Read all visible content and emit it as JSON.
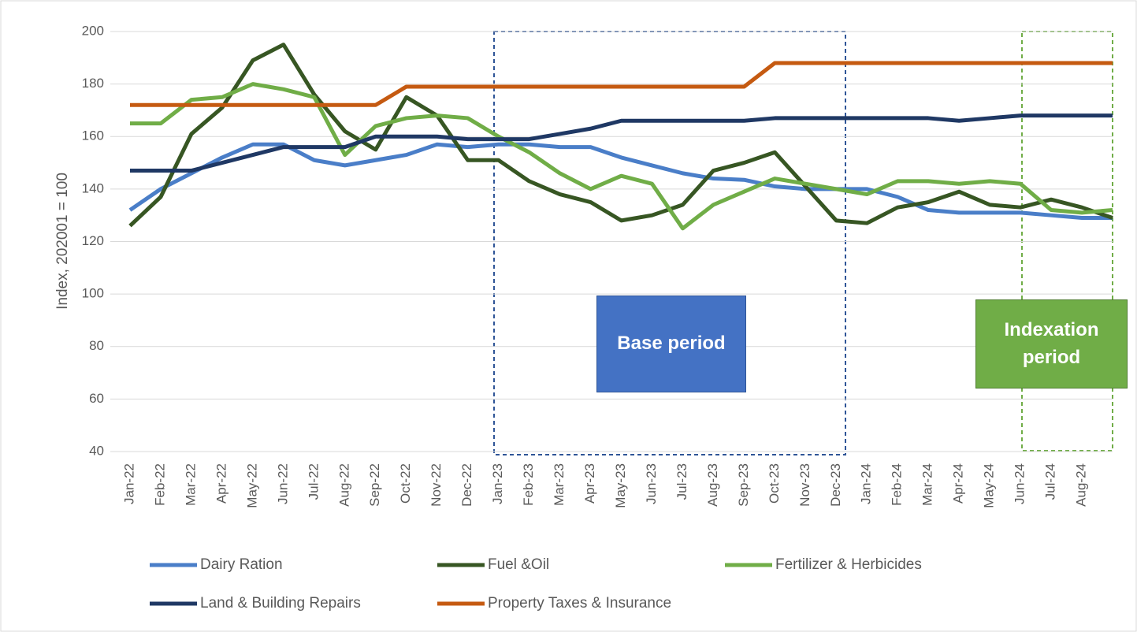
{
  "chart_data": {
    "type": "line",
    "y_label": "Index, 202001 = 100",
    "categories": [
      "Jan-22",
      "Feb-22",
      "Mar-22",
      "Apr-22",
      "May-22",
      "Jun-22",
      "Jul-22",
      "Aug-22",
      "Sep-22",
      "Oct-22",
      "Nov-22",
      "Dec-22",
      "Jan-23",
      "Feb-23",
      "Mar-23",
      "Apr-23",
      "May-23",
      "Jun-23",
      "Jul-23",
      "Aug-23",
      "Sep-23",
      "Oct-23",
      "Nov-23",
      "Dec-23",
      "Jan-24",
      "Feb-24",
      "Mar-24",
      "Apr-24",
      "May-24",
      "Jun-24",
      "Jul-24",
      "Aug-24",
      null
    ],
    "series": [
      {
        "name": "Dairy Ration",
        "color": "#4a7ec8",
        "values": [
          132,
          140,
          146,
          152,
          157,
          157,
          151,
          149,
          151,
          153,
          157,
          156,
          157,
          157,
          156,
          156,
          152,
          149,
          146,
          144,
          143.5,
          141,
          140,
          140,
          140,
          137,
          132,
          131,
          131,
          131,
          130,
          129,
          129
        ]
      },
      {
        "name": "Fuel &Oil",
        "color": "#375623",
        "values": [
          126,
          137,
          161,
          171,
          189,
          195,
          176,
          162,
          155,
          175,
          168,
          151,
          151,
          143,
          138,
          135,
          128,
          130,
          134,
          147,
          150,
          154,
          141,
          128,
          127,
          133,
          135,
          139,
          134,
          133,
          136,
          133,
          129
        ]
      },
      {
        "name": "Fertilizer & Herbicides",
        "color": "#70ad47",
        "values": [
          165,
          165,
          174,
          175,
          180,
          178,
          175,
          153,
          164,
          167,
          168,
          167,
          160,
          154,
          146,
          140,
          145,
          142,
          125,
          134,
          139,
          144,
          142,
          140,
          138,
          143,
          143,
          142,
          143,
          142,
          132,
          131,
          132
        ]
      },
      {
        "name": "Land & Building Repairs",
        "color": "#1f3864",
        "values": [
          147,
          147,
          147,
          150,
          153,
          156,
          156,
          156,
          160,
          160,
          160,
          159,
          159,
          159,
          161,
          163,
          166,
          166,
          166,
          166,
          166,
          167,
          167,
          167,
          167,
          167,
          167,
          166,
          167,
          168,
          168,
          168,
          168
        ]
      },
      {
        "name": "Property Taxes & Insurance",
        "color": "#c55a11",
        "values": [
          172,
          172,
          172,
          172,
          172,
          172,
          172,
          172,
          172,
          179,
          179,
          179,
          179,
          179,
          179,
          179,
          179,
          179,
          179,
          179,
          179,
          188,
          188,
          188,
          188,
          188,
          188,
          188,
          188,
          188,
          188,
          188,
          188
        ]
      }
    ],
    "ylim": [
      40,
      200
    ],
    "yticks": [
      40,
      60,
      80,
      100,
      120,
      140,
      160,
      180,
      200
    ],
    "grid": true,
    "annotations": [
      "Base period",
      "Indexation period"
    ]
  }
}
